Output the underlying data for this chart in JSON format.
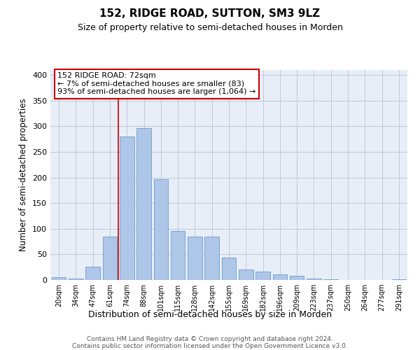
{
  "title": "152, RIDGE ROAD, SUTTON, SM3 9LZ",
  "subtitle": "Size of property relative to semi-detached houses in Morden",
  "xlabel": "Distribution of semi-detached houses by size in Morden",
  "ylabel": "Number of semi-detached properties",
  "categories": [
    "20sqm",
    "34sqm",
    "47sqm",
    "61sqm",
    "74sqm",
    "88sqm",
    "101sqm",
    "115sqm",
    "128sqm",
    "142sqm",
    "155sqm",
    "169sqm",
    "182sqm",
    "196sqm",
    "209sqm",
    "223sqm",
    "237sqm",
    "250sqm",
    "264sqm",
    "277sqm",
    "291sqm"
  ],
  "values": [
    5,
    3,
    26,
    85,
    280,
    297,
    197,
    95,
    85,
    85,
    44,
    20,
    16,
    11,
    8,
    3,
    2,
    0,
    0,
    0,
    2
  ],
  "bar_color": "#aec6e8",
  "bar_edge_color": "#5a8fc2",
  "grid_color": "#c0c8d8",
  "background_color": "#e8eef8",
  "vline_x_index": 4,
  "vline_color": "#cc0000",
  "annotation_text": "152 RIDGE ROAD: 72sqm\n← 7% of semi-detached houses are smaller (83)\n93% of semi-detached houses are larger (1,064) →",
  "annotation_box_color": "#ffffff",
  "annotation_box_edge": "#cc0000",
  "footer_text": "Contains HM Land Registry data © Crown copyright and database right 2024.\nContains public sector information licensed under the Open Government Licence v3.0.",
  "ylim": [
    0,
    410
  ],
  "yticks": [
    0,
    50,
    100,
    150,
    200,
    250,
    300,
    350,
    400
  ]
}
